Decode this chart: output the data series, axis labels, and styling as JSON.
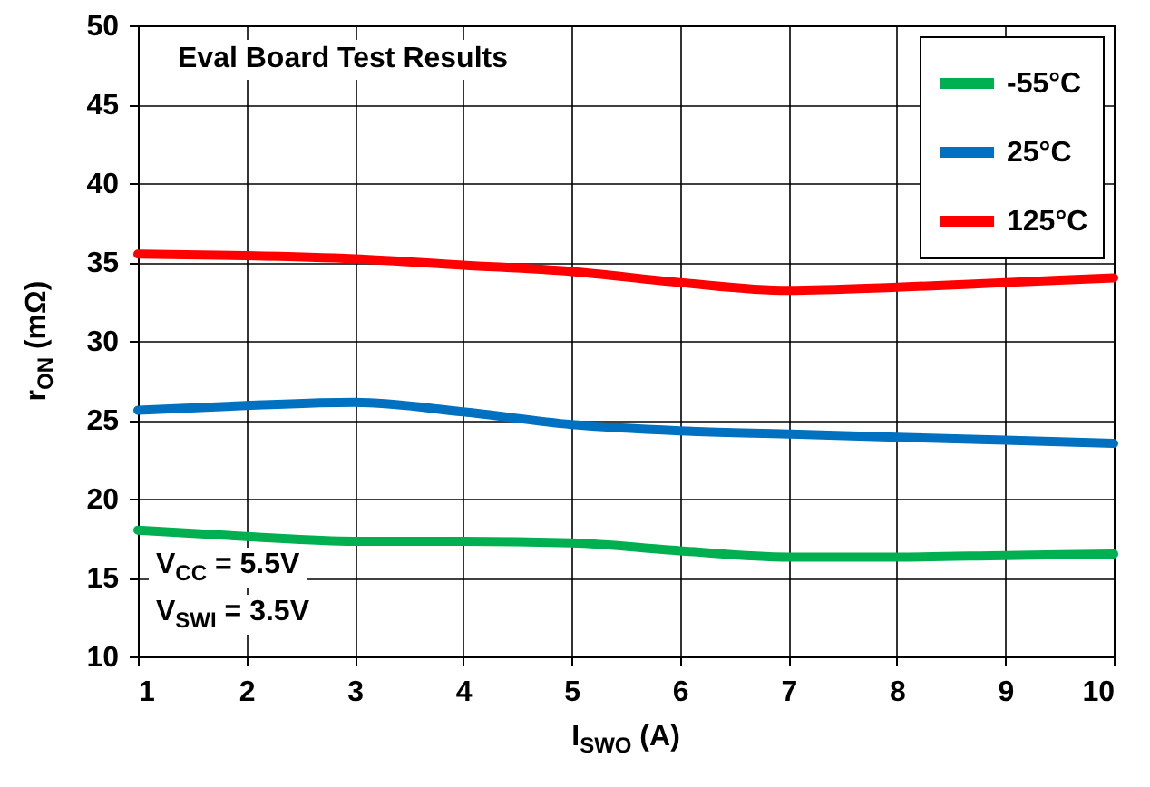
{
  "chart_data": {
    "type": "line",
    "xlabel": "I$_{SWO}$ (A)",
    "ylabel": "r$_{ON}$ (mΩ)",
    "annotations": [
      "Eval Board Test Results",
      "V$_{CC}$ = 5.5V",
      "V$_{SWI}$ = 3.5V"
    ],
    "x": [
      1,
      2,
      3,
      4,
      5,
      6,
      7,
      8,
      9,
      10
    ],
    "series": [
      {
        "name": "-55°C",
        "color": "#00b050",
        "values": [
          18.0,
          17.6,
          17.3,
          17.3,
          17.2,
          16.7,
          16.3,
          16.3,
          16.4,
          16.5
        ]
      },
      {
        "name": "25°C",
        "color": "#0070c0",
        "values": [
          25.6,
          25.9,
          26.1,
          25.5,
          24.7,
          24.3,
          24.1,
          23.9,
          23.7,
          23.5
        ]
      },
      {
        "name": "125°C",
        "color": "#ff0000",
        "values": [
          35.5,
          35.4,
          35.2,
          34.8,
          34.4,
          33.7,
          33.2,
          33.4,
          33.7,
          34.0
        ]
      }
    ],
    "xlim": [
      1,
      10
    ],
    "xticks": [
      1,
      2,
      3,
      4,
      5,
      6,
      7,
      8,
      9,
      10
    ],
    "ylim": [
      10,
      50
    ],
    "yticks": [
      10,
      15,
      20,
      25,
      30,
      35,
      40,
      45,
      50
    ],
    "grid": true,
    "legend": "top right",
    "marker": "none",
    "line_style": "solid"
  }
}
